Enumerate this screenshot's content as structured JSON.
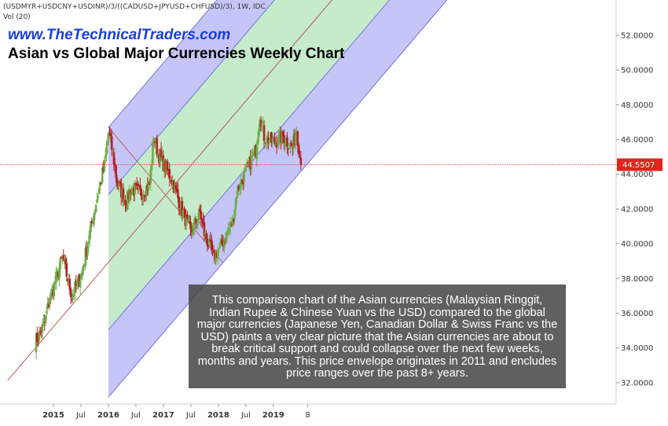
{
  "header": {
    "symbol_line": "(USDMYR+USDCNY+USDINR)/3/((CADUSD+JPYUSD+CHFUSD)/3), 1W, IDC",
    "volume_line": "Vol (20)",
    "website": "www.TheTechnicalTraders.com",
    "title": "Asian vs Global Major Currencies Weekly Chart"
  },
  "annotation": "This comparison chart of the Asian currencies (Malaysian Ringgit, Indian Rupee & Chinese Yuan vs the USD) compared to the global major currencies (Japanese Yen, Canadian Dollar & Swiss Franc vs the USD) paints a very clear picture that the Asian currencies are about to break critical support and could collapse over the next few weeks, months and years.  This price envelope originates in 2011 and encludes price ranges over the past 8+ years.",
  "colors": {
    "up": "#6fae4b",
    "down": "#b22222",
    "channel_blue": "#7f7ff0",
    "channel_green": "#7fd38b",
    "median_line": "#b85c54",
    "current_price": "#e0241e"
  },
  "chart_data": {
    "type": "candlestick",
    "timeframe": "1W",
    "current_price": "44.5507",
    "y_axis": {
      "ticks": [
        "32.0000",
        "34.0000",
        "36.0000",
        "38.0000",
        "40.0000",
        "42.0000",
        "44.0000",
        "46.0000",
        "48.0000",
        "50.0000",
        "52.0000"
      ],
      "range": [
        31.0,
        53.9
      ]
    },
    "x_axis": {
      "ticks": [
        {
          "label": "2015",
          "major": true
        },
        {
          "label": "Jul",
          "major": false
        },
        {
          "label": "2016",
          "major": true
        },
        {
          "label": "Jul",
          "major": false
        },
        {
          "label": "2017",
          "major": true
        },
        {
          "label": "Jul",
          "major": false
        },
        {
          "label": "2018",
          "major": true
        },
        {
          "label": "Jul",
          "major": false
        },
        {
          "label": "2019",
          "major": true
        },
        {
          "label": "8",
          "major": false
        }
      ]
    },
    "approx_close_path": [
      {
        "date": "2014-09",
        "close": 34.3
      },
      {
        "date": "2014-11",
        "close": 35.4
      },
      {
        "date": "2014-12",
        "close": 36.6
      },
      {
        "date": "2015-03",
        "close": 39.2
      },
      {
        "date": "2015-05",
        "close": 37.0
      },
      {
        "date": "2015-07",
        "close": 38.2
      },
      {
        "date": "2015-10",
        "close": 42.1
      },
      {
        "date": "2015-12",
        "close": 44.5
      },
      {
        "date": "2016-01",
        "close": 46.4
      },
      {
        "date": "2016-02",
        "close": 45.2
      },
      {
        "date": "2016-03",
        "close": 43.5
      },
      {
        "date": "2016-05",
        "close": 42.4
      },
      {
        "date": "2016-06",
        "close": 43.2
      },
      {
        "date": "2016-08",
        "close": 42.9
      },
      {
        "date": "2016-10",
        "close": 43.4
      },
      {
        "date": "2016-11",
        "close": 46.2
      },
      {
        "date": "2016-12",
        "close": 45.2
      },
      {
        "date": "2017-03",
        "close": 43.7
      },
      {
        "date": "2017-05",
        "close": 42.1
      },
      {
        "date": "2017-07",
        "close": 40.6
      },
      {
        "date": "2017-09",
        "close": 41.8
      },
      {
        "date": "2017-10",
        "close": 40.6
      },
      {
        "date": "2017-12",
        "close": 39.2
      },
      {
        "date": "2018-02",
        "close": 40.1
      },
      {
        "date": "2018-04",
        "close": 41.3
      },
      {
        "date": "2018-05",
        "close": 43.0
      },
      {
        "date": "2018-07",
        "close": 44.2
      },
      {
        "date": "2018-09",
        "close": 45.4
      },
      {
        "date": "2018-10",
        "close": 47.5
      },
      {
        "date": "2018-11",
        "close": 46.2
      },
      {
        "date": "2019-01",
        "close": 45.8
      },
      {
        "date": "2019-03",
        "close": 46.2
      },
      {
        "date": "2019-05",
        "close": 45.5
      },
      {
        "date": "2019-06",
        "close": 46.6
      },
      {
        "date": "2019-07",
        "close": 44.55
      }
    ],
    "price_envelope": {
      "description": "Pitchfork-style channel of parallel lines with a red median line",
      "median_line_start_2014_09": 33.7,
      "median_line_end_2019_12": 53.2,
      "channel_points": [
        {
          "date": "2016-01",
          "price": 46.7
        },
        {
          "date": "2018-02",
          "price": 38.9
        }
      ]
    },
    "legend": "none",
    "grid": false
  }
}
